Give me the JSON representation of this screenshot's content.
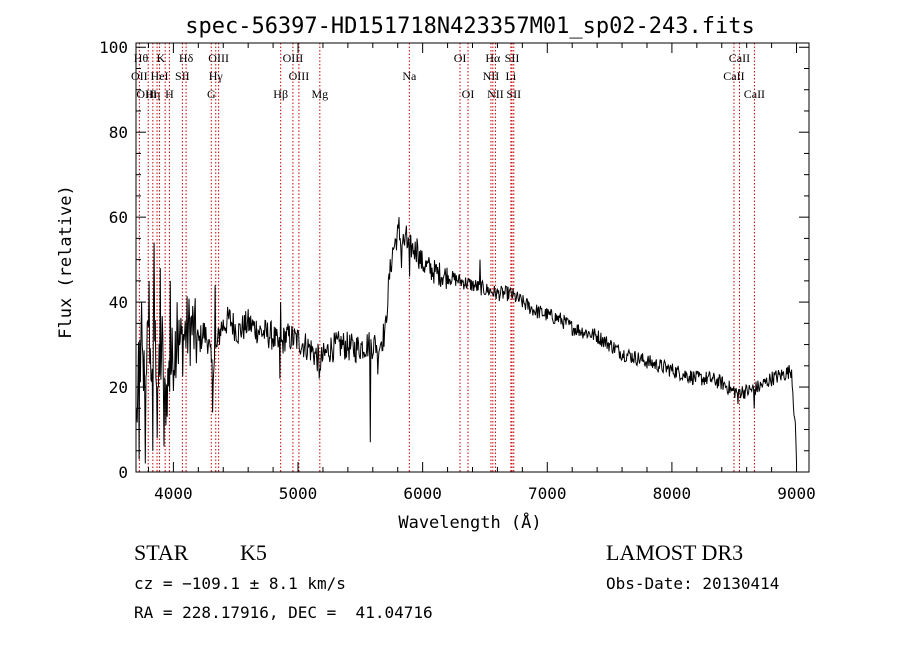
{
  "chart_data": {
    "type": "line",
    "title": "spec-56397-HD151718N423357M01_sp02-243.fits",
    "xlabel": "Wavelength (Å)",
    "ylabel": "Flux (relative)",
    "xlim": [
      3700,
      9100
    ],
    "ylim": [
      0,
      101
    ],
    "x_ticks": [
      4000,
      5000,
      6000,
      7000,
      8000,
      9000
    ],
    "y_ticks": [
      0,
      20,
      40,
      60,
      80,
      100
    ],
    "x_tick_labels": [
      "4000",
      "5000",
      "6000",
      "7000",
      "8000",
      "9000"
    ],
    "y_tick_labels": [
      "0",
      "20",
      "40",
      "60",
      "80",
      "100"
    ],
    "line_color": "#000000",
    "marker_color": "#cc0000",
    "spectrum_anchors": [
      [
        3705,
        12
      ],
      [
        3730,
        28
      ],
      [
        3760,
        22
      ],
      [
        3790,
        30
      ],
      [
        3820,
        24
      ],
      [
        3850,
        32
      ],
      [
        3880,
        20
      ],
      [
        3910,
        30
      ],
      [
        3930,
        16
      ],
      [
        3960,
        22
      ],
      [
        3990,
        26
      ],
      [
        4020,
        31
      ],
      [
        4060,
        30
      ],
      [
        4100,
        33
      ],
      [
        4150,
        34
      ],
      [
        4200,
        30
      ],
      [
        4240,
        33
      ],
      [
        4280,
        31
      ],
      [
        4310,
        24
      ],
      [
        4340,
        28
      ],
      [
        4380,
        34
      ],
      [
        4450,
        36
      ],
      [
        4520,
        33
      ],
      [
        4600,
        35
      ],
      [
        4700,
        33
      ],
      [
        4800,
        32
      ],
      [
        4850,
        29
      ],
      [
        4900,
        32
      ],
      [
        5000,
        31
      ],
      [
        5100,
        29
      ],
      [
        5180,
        26
      ],
      [
        5250,
        29
      ],
      [
        5350,
        30
      ],
      [
        5450,
        29
      ],
      [
        5550,
        30
      ],
      [
        5650,
        30
      ],
      [
        5700,
        33
      ],
      [
        5730,
        45
      ],
      [
        5760,
        52
      ],
      [
        5800,
        56
      ],
      [
        5850,
        54
      ],
      [
        5900,
        53
      ],
      [
        5950,
        52
      ],
      [
        6000,
        49
      ],
      [
        6100,
        47
      ],
      [
        6200,
        46
      ],
      [
        6300,
        45
      ],
      [
        6400,
        44
      ],
      [
        6500,
        43
      ],
      [
        6600,
        42
      ],
      [
        6700,
        42
      ],
      [
        6800,
        40
      ],
      [
        6900,
        38
      ],
      [
        7000,
        37
      ],
      [
        7100,
        36
      ],
      [
        7200,
        34
      ],
      [
        7300,
        33
      ],
      [
        7400,
        32
      ],
      [
        7500,
        30
      ],
      [
        7600,
        28
      ],
      [
        7700,
        27
      ],
      [
        7800,
        26
      ],
      [
        7900,
        25
      ],
      [
        8000,
        24
      ],
      [
        8100,
        23
      ],
      [
        8200,
        22
      ],
      [
        8300,
        22
      ],
      [
        8400,
        21
      ],
      [
        8500,
        19
      ],
      [
        8600,
        19
      ],
      [
        8700,
        20
      ],
      [
        8800,
        22
      ],
      [
        8900,
        23
      ],
      [
        8960,
        24
      ],
      [
        8990,
        10
      ],
      [
        9000,
        3
      ]
    ],
    "spectrum_spikes": [
      [
        3725,
        3
      ],
      [
        3745,
        40
      ],
      [
        3775,
        2
      ],
      [
        3805,
        45
      ],
      [
        3835,
        5
      ],
      [
        3845,
        54
      ],
      [
        3870,
        8
      ],
      [
        3895,
        48
      ],
      [
        3925,
        6
      ],
      [
        3950,
        13
      ],
      [
        3975,
        45
      ],
      [
        4030,
        40
      ],
      [
        4315,
        14
      ],
      [
        4335,
        44
      ],
      [
        4855,
        22
      ],
      [
        4860,
        40
      ],
      [
        5170,
        22
      ],
      [
        5580,
        7
      ],
      [
        5640,
        23
      ],
      [
        5810,
        60
      ],
      [
        5830,
        48
      ],
      [
        5870,
        58
      ],
      [
        5895,
        46
      ],
      [
        5955,
        55
      ],
      [
        6460,
        50
      ],
      [
        7660,
        28
      ],
      [
        8480,
        19
      ],
      [
        8530,
        16
      ],
      [
        8660,
        15
      ]
    ],
    "line_markers": [
      {
        "label": "Hθ",
        "x": 3798,
        "row": 0,
        "align": "right"
      },
      {
        "label": "K",
        "x": 3934,
        "row": 0,
        "align": "right"
      },
      {
        "label": "Hδ",
        "x": 4102,
        "row": 0,
        "align": "center"
      },
      {
        "label": "OIII",
        "x": 4363,
        "row": 0,
        "align": "center"
      },
      {
        "label": "OIII",
        "x": 4959,
        "row": 0,
        "align": "center"
      },
      {
        "label": "OI",
        "x": 6300,
        "row": 0,
        "align": "center"
      },
      {
        "label": "Hα",
        "x": 6563,
        "row": 0,
        "align": "center"
      },
      {
        "label": "SII",
        "x": 6717,
        "row": 0,
        "align": "center"
      },
      {
        "label": "CaII",
        "x": 8542,
        "row": 0,
        "align": "center"
      },
      {
        "label": "OII",
        "x": 3727,
        "row": 1,
        "align": "center"
      },
      {
        "label": "HeI",
        "x": 3889,
        "row": 1,
        "align": "center"
      },
      {
        "label": "SII",
        "x": 4072,
        "row": 1,
        "align": "center"
      },
      {
        "label": "Hγ",
        "x": 4340,
        "row": 1,
        "align": "center"
      },
      {
        "label": "OIII",
        "x": 5007,
        "row": 1,
        "align": "center"
      },
      {
        "label": "Na",
        "x": 5893,
        "row": 1,
        "align": "center"
      },
      {
        "label": "NII",
        "x": 6548,
        "row": 1,
        "align": "center"
      },
      {
        "label": "Li",
        "x": 6708,
        "row": 1,
        "align": "center"
      },
      {
        "label": "CaII",
        "x": 8498,
        "row": 1,
        "align": "center"
      },
      {
        "label": "OIII",
        "x": 3869,
        "row": 2,
        "align": "right"
      },
      {
        "label": "Hη",
        "x": 3835,
        "row": 2,
        "align": "center"
      },
      {
        "label": "H",
        "x": 3968,
        "row": 2,
        "align": "center"
      },
      {
        "label": "G",
        "x": 4304,
        "row": 2,
        "align": "center"
      },
      {
        "label": "Hβ",
        "x": 4861,
        "row": 2,
        "align": "center"
      },
      {
        "label": "Mg",
        "x": 5175,
        "row": 2,
        "align": "center"
      },
      {
        "label": "OI",
        "x": 6364,
        "row": 2,
        "align": "center"
      },
      {
        "label": "NII",
        "x": 6584,
        "row": 2,
        "align": "center"
      },
      {
        "label": "SII",
        "x": 6731,
        "row": 2,
        "align": "center"
      },
      {
        "label": "CaII",
        "x": 8662,
        "row": 2,
        "align": "center"
      }
    ],
    "grid": false,
    "legend": "none"
  },
  "info": {
    "object_class": "STAR",
    "subclass": "K5",
    "survey": "LAMOST DR3",
    "cz": "cz = −109.1 ± 8.1 km/s",
    "obs_date": "Obs-Date: 20130414",
    "coords": "RA = 228.17916, DEC =  41.04716"
  }
}
